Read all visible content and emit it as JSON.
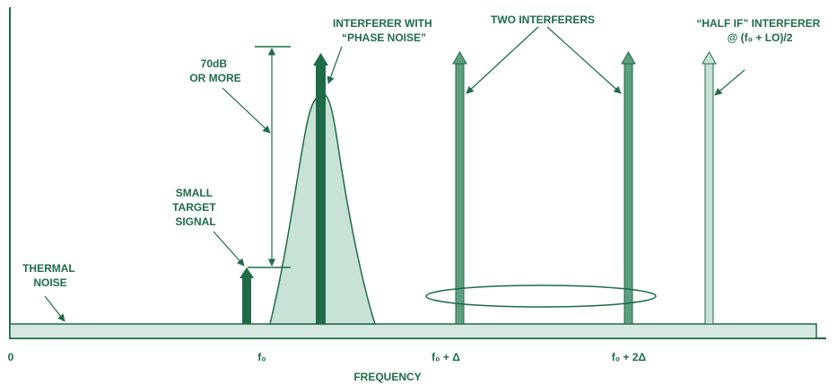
{
  "colors": {
    "dark_green": "#1f6b48",
    "mid_green": "#5e9e7f",
    "light_green": "#c9e2d6",
    "pale_green": "#d6e8df",
    "outline": "#1f6b48"
  },
  "labels": {
    "thermal_noise": [
      "THERMAL",
      "NOISE"
    ],
    "small_target": [
      "SMALL",
      "TARGET",
      "SIGNAL"
    ],
    "seventy_db": [
      "70dB",
      "OR MORE"
    ],
    "interferer_phase_noise": [
      "INTERFERER WITH",
      "“PHASE NOISE”"
    ],
    "two_interferers": "TWO INTERFERERS",
    "half_if": [
      "“HALF IF” INTERFERER",
      "@ (f₀ + LO)/2"
    ]
  },
  "axis": {
    "origin": "0",
    "f0": "f₀",
    "f0_plus_delta": "f₀ + Δ",
    "f0_plus_2delta": "f₀ + 2Δ",
    "xlabel": "FREQUENCY"
  }
}
